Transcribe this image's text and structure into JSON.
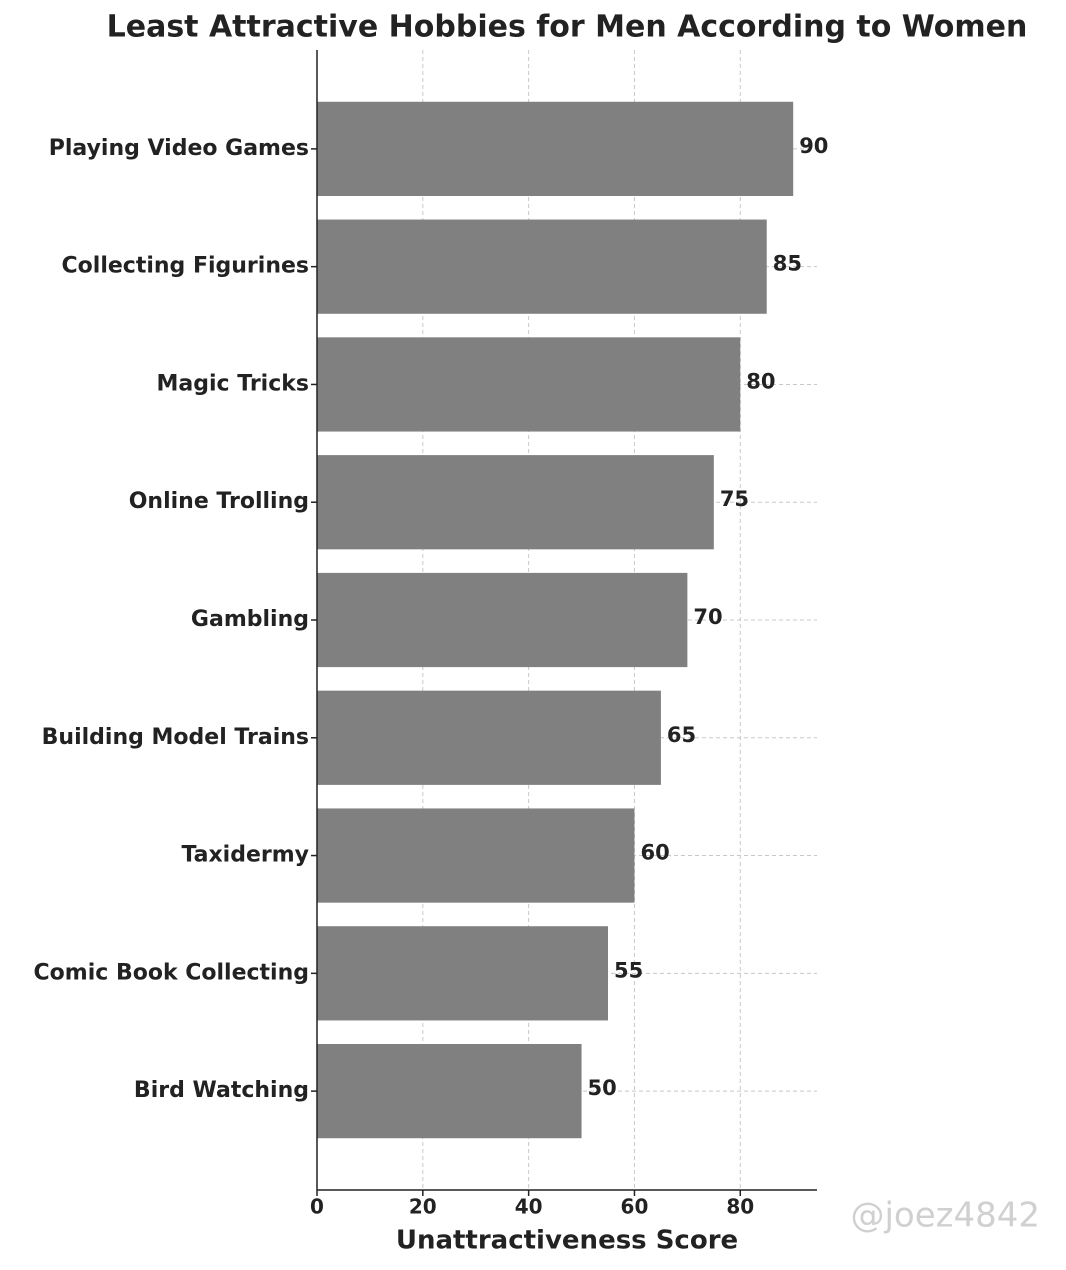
{
  "chart_data": {
    "type": "barh",
    "title": "Least Attractive Hobbies for Men According to Women",
    "xlabel": "Unattractiveness Score",
    "categories": [
      "Playing Video Games",
      "Collecting Figurines",
      "Magic Tricks",
      "Online Trolling",
      "Gambling",
      "Building Model Trains",
      "Taxidermy",
      "Comic Book Collecting",
      "Bird Watching"
    ],
    "values": [
      90,
      85,
      80,
      75,
      70,
      65,
      60,
      55,
      50
    ],
    "color": "#808080",
    "xlim": [
      0,
      94.5
    ],
    "xticks": [
      0,
      20,
      40,
      60,
      80
    ],
    "grid": true,
    "watermark": "@joez4842"
  }
}
